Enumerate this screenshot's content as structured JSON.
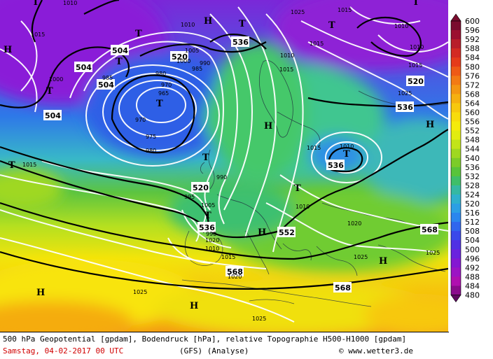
{
  "map": {
    "title": "500 hPa Geopotential [gpdam], Bodendruck [hPa], relative Topographie H500-H1000 [gpdam]",
    "date": "Samstag, 04-02-2017  00 UTC",
    "model": "(GFS)  (Analyse)",
    "copyright": "© www.wetter3.de",
    "high_symbol": "H",
    "low_symbol": "T",
    "geopotential_labels": [
      "504",
      "504",
      "504",
      "504",
      "520",
      "536",
      "520",
      "520",
      "536",
      "536",
      "536",
      "552",
      "568",
      "568",
      "568"
    ],
    "pressure_labels": [
      "1010",
      "1015",
      "1000",
      "985",
      "1010",
      "1005",
      "1000",
      "990",
      "980",
      "985",
      "970",
      "965",
      "975",
      "980",
      "970",
      "1010",
      "1015",
      "1010",
      "1015",
      "1010",
      "1015",
      "1025",
      "1025",
      "1010",
      "1015",
      "1015",
      "1015",
      "1010",
      "1020",
      "995",
      "990",
      "990",
      "1005",
      "1010",
      "1015",
      "1020",
      "1020",
      "1025",
      "1025",
      "1025",
      "1025"
    ],
    "colorbar": {
      "unit": "gpdam",
      "levels": [
        600,
        596,
        592,
        588,
        584,
        580,
        576,
        572,
        568,
        564,
        560,
        556,
        552,
        548,
        544,
        540,
        536,
        532,
        528,
        524,
        520,
        516,
        512,
        508,
        504,
        500,
        496,
        492,
        488,
        484,
        480
      ],
      "colors": [
        "#7a0c2e",
        "#9b1030",
        "#b81d2a",
        "#d32a22",
        "#e53b1a",
        "#ee5a16",
        "#f27a14",
        "#f39612",
        "#f5b010",
        "#f7c80e",
        "#f8dc0c",
        "#f5eb0c",
        "#e2ec10",
        "#c2e418",
        "#9fd820",
        "#7ccc28",
        "#58c43a",
        "#3fbe68",
        "#35b8a2",
        "#2fb0cc",
        "#2c9fe4",
        "#2a86ee",
        "#3066ee",
        "#3a48ea",
        "#5030e4",
        "#6a22de",
        "#8418d2",
        "#9c14c4",
        "#b010b0",
        "#8a0c8c",
        "#5e0a60"
      ]
    }
  }
}
